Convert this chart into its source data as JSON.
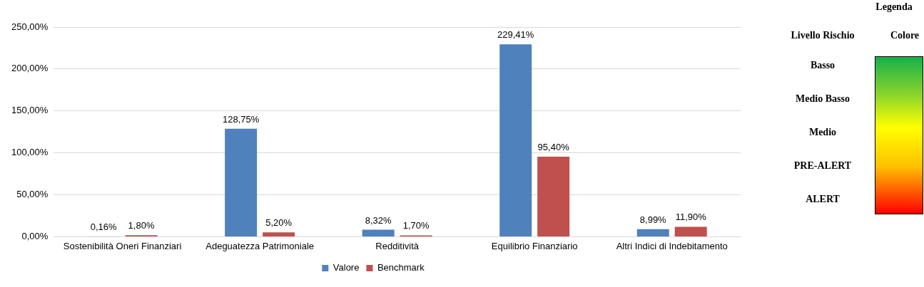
{
  "chart_data": [
    {
      "type": "bar",
      "categories": [
        "Sostenibilità Oneri Finanziari",
        "Adeguatezza Patrimoniale",
        "Redditività",
        "Equilibrio Finanziario",
        "Altri Indici di Indebitamento"
      ],
      "series": [
        {
          "name": "Valore",
          "color": "#4f81bd",
          "values": [
            0.16,
            128.75,
            8.32,
            229.41,
            8.99
          ],
          "value_labels": [
            "0,16%",
            "128,75%",
            "8,32%",
            "229,41%",
            "8,99%"
          ]
        },
        {
          "name": "Benchmark",
          "color": "#c0504d",
          "values": [
            1.8,
            5.2,
            1.7,
            95.4,
            11.9
          ],
          "value_labels": [
            "1,80%",
            "5,20%",
            "1,70%",
            "95,40%",
            "11,90%"
          ]
        }
      ],
      "ylim": [
        0,
        250
      ],
      "yticks": [
        {
          "value": 0,
          "label": "0,00%"
        },
        {
          "value": 50,
          "label": "50,00%"
        },
        {
          "value": 100,
          "label": "100,00%"
        },
        {
          "value": 150,
          "label": "150,00%"
        },
        {
          "value": 200,
          "label": "200,00%"
        },
        {
          "value": 250,
          "label": "250,00%"
        }
      ],
      "grid": "y",
      "legend": "bottom"
    },
    {
      "type": "other",
      "title": "Legenda",
      "annotations": [
        "Livello Rischio",
        "Colore",
        "Basso",
        "Medio Basso",
        "Medio",
        "PRE-ALERT",
        "ALERT"
      ]
    }
  ]
}
